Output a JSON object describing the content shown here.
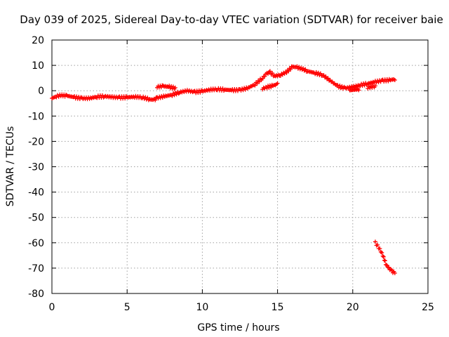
{
  "chart_data": {
    "type": "scatter",
    "title": "Day 039 of 2025, Sidereal Day-to-day VTEC variation (SDTVAR) for receiver baie",
    "xlabel": "GPS time / hours",
    "ylabel": "SDTVAR / TECUs",
    "xlim": [
      0,
      25
    ],
    "ylim": [
      -80,
      20
    ],
    "xticks": [
      0,
      5,
      10,
      15,
      20,
      25
    ],
    "yticks": [
      20,
      10,
      0,
      -10,
      -20,
      -30,
      -40,
      -50,
      -60,
      -70,
      -80
    ],
    "grid": true,
    "marker_color": "#ff0000",
    "series": [
      {
        "name": "SDTVAR",
        "points": [
          [
            0.0,
            -3.0
          ],
          [
            0.3,
            -2.2
          ],
          [
            0.6,
            -1.8
          ],
          [
            1.0,
            -2.0
          ],
          [
            1.5,
            -2.6
          ],
          [
            2.0,
            -3.0
          ],
          [
            2.5,
            -3.0
          ],
          [
            3.0,
            -2.4
          ],
          [
            3.5,
            -2.2
          ],
          [
            4.0,
            -2.5
          ],
          [
            4.5,
            -2.7
          ],
          [
            5.0,
            -2.6
          ],
          [
            5.5,
            -2.4
          ],
          [
            6.0,
            -2.6
          ],
          [
            6.5,
            -3.4
          ],
          [
            6.8,
            -3.6
          ],
          [
            7.0,
            -2.8
          ],
          [
            7.5,
            -2.2
          ],
          [
            8.0,
            -1.6
          ],
          [
            8.5,
            -0.6
          ],
          [
            9.0,
            0.0
          ],
          [
            9.5,
            -0.5
          ],
          [
            10.0,
            -0.2
          ],
          [
            10.5,
            0.4
          ],
          [
            11.0,
            0.6
          ],
          [
            11.5,
            0.4
          ],
          [
            12.0,
            0.2
          ],
          [
            12.5,
            0.3
          ],
          [
            13.0,
            1.0
          ],
          [
            13.5,
            2.5
          ],
          [
            14.0,
            5.0
          ],
          [
            14.3,
            6.8
          ],
          [
            14.5,
            7.3
          ],
          [
            14.8,
            5.8
          ],
          [
            15.2,
            6.2
          ],
          [
            15.6,
            7.4
          ],
          [
            16.0,
            9.5
          ],
          [
            16.3,
            9.2
          ],
          [
            16.7,
            8.5
          ],
          [
            17.0,
            7.7
          ],
          [
            17.5,
            7.0
          ],
          [
            18.0,
            6.2
          ],
          [
            18.5,
            4.0
          ],
          [
            19.0,
            1.8
          ],
          [
            19.5,
            1.0
          ],
          [
            20.0,
            1.5
          ],
          [
            20.5,
            2.2
          ],
          [
            21.0,
            2.8
          ],
          [
            21.5,
            3.5
          ],
          [
            22.0,
            4.0
          ],
          [
            22.5,
            4.2
          ],
          [
            22.8,
            4.6
          ],
          [
            7.0,
            1.5
          ],
          [
            7.4,
            1.8
          ],
          [
            7.8,
            1.5
          ],
          [
            8.2,
            1.0
          ],
          [
            14.0,
            0.8
          ],
          [
            14.3,
            1.4
          ],
          [
            14.7,
            2.0
          ],
          [
            15.0,
            2.6
          ],
          [
            19.2,
            0.8
          ],
          [
            19.8,
            0.2
          ],
          [
            20.4,
            0.6
          ],
          [
            21.0,
            1.2
          ],
          [
            21.5,
            1.8
          ],
          [
            21.5,
            -60.0
          ],
          [
            21.8,
            -62.5
          ],
          [
            22.0,
            -65.0
          ],
          [
            22.1,
            -66.5
          ],
          [
            22.2,
            -68.5
          ],
          [
            22.4,
            -70.0
          ],
          [
            22.6,
            -71.2
          ],
          [
            22.8,
            -72.0
          ]
        ]
      }
    ]
  }
}
